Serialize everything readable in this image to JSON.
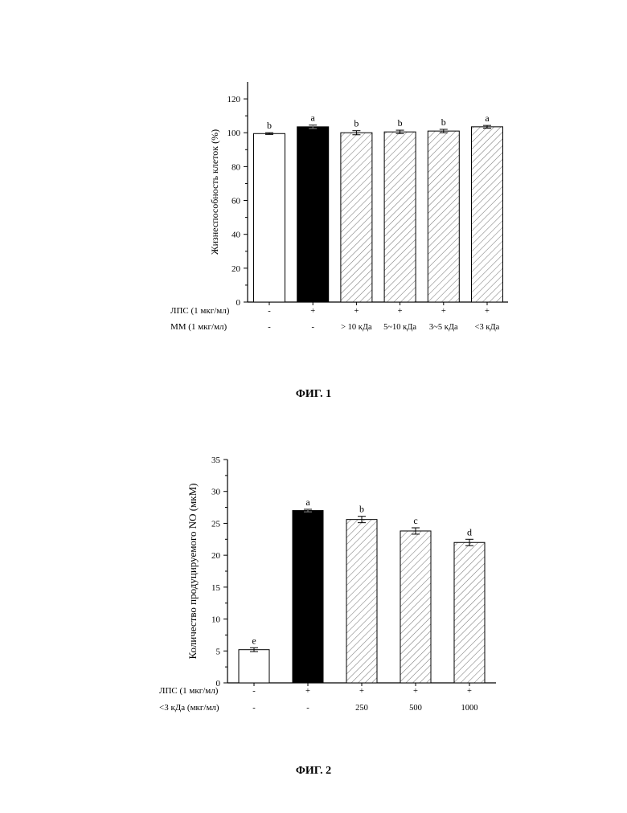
{
  "figures": {
    "fig1_caption": "ФИГ. 1",
    "fig2_caption": "ФИГ. 2"
  },
  "chart_data": [
    {
      "type": "bar",
      "title": "",
      "ylabel": "Жизнеспособность клеток (%)",
      "xlabel": "",
      "ylim": [
        0,
        130
      ],
      "yticks": [
        0,
        20,
        40,
        60,
        80,
        100,
        120
      ],
      "grid": false,
      "legend": "none",
      "categories": [
        "1",
        "2",
        "3",
        "4",
        "5",
        "6"
      ],
      "values": [
        99.5,
        103.5,
        100.0,
        100.5,
        101.0,
        103.5
      ],
      "errors": [
        0.5,
        1.0,
        1.2,
        1.0,
        1.0,
        0.8
      ],
      "letters": [
        "b",
        "a",
        "b",
        "b",
        "b",
        "a"
      ],
      "fills": [
        "white",
        "black",
        "hatch",
        "hatch",
        "hatch",
        "hatch"
      ],
      "condition_rows": [
        {
          "label": "ЛПС (1 мкг/мл)",
          "values": [
            "-",
            "+",
            "+",
            "+",
            "+",
            "+"
          ]
        },
        {
          "label": "ММ (1 мкг/мл)",
          "values": [
            "-",
            "-",
            "> 10 кДа",
            "5~10 кДа",
            "3~5 кДа",
            "<3 кДа"
          ]
        }
      ]
    },
    {
      "type": "bar",
      "title": "",
      "ylabel": "Количество продуцируемого NO (мкМ)",
      "xlabel": "",
      "ylim": [
        0,
        35
      ],
      "yticks": [
        0,
        5,
        10,
        15,
        20,
        25,
        30,
        35
      ],
      "grid": false,
      "legend": "none",
      "categories": [
        "1",
        "2",
        "3",
        "4",
        "5"
      ],
      "values": [
        5.2,
        27.0,
        25.6,
        23.8,
        22.0
      ],
      "errors": [
        0.3,
        0.2,
        0.5,
        0.5,
        0.5
      ],
      "letters": [
        "e",
        "a",
        "b",
        "c",
        "d"
      ],
      "fills": [
        "white",
        "black",
        "hatch",
        "hatch",
        "hatch"
      ],
      "condition_rows": [
        {
          "label": "ЛПС (1 мкг/мл)",
          "values": [
            "-",
            "+",
            "+",
            "+",
            "+"
          ]
        },
        {
          "label": "<3 кДа (мкг/мл)",
          "values": [
            "-",
            "-",
            "250",
            "500",
            "1000"
          ]
        }
      ]
    }
  ]
}
